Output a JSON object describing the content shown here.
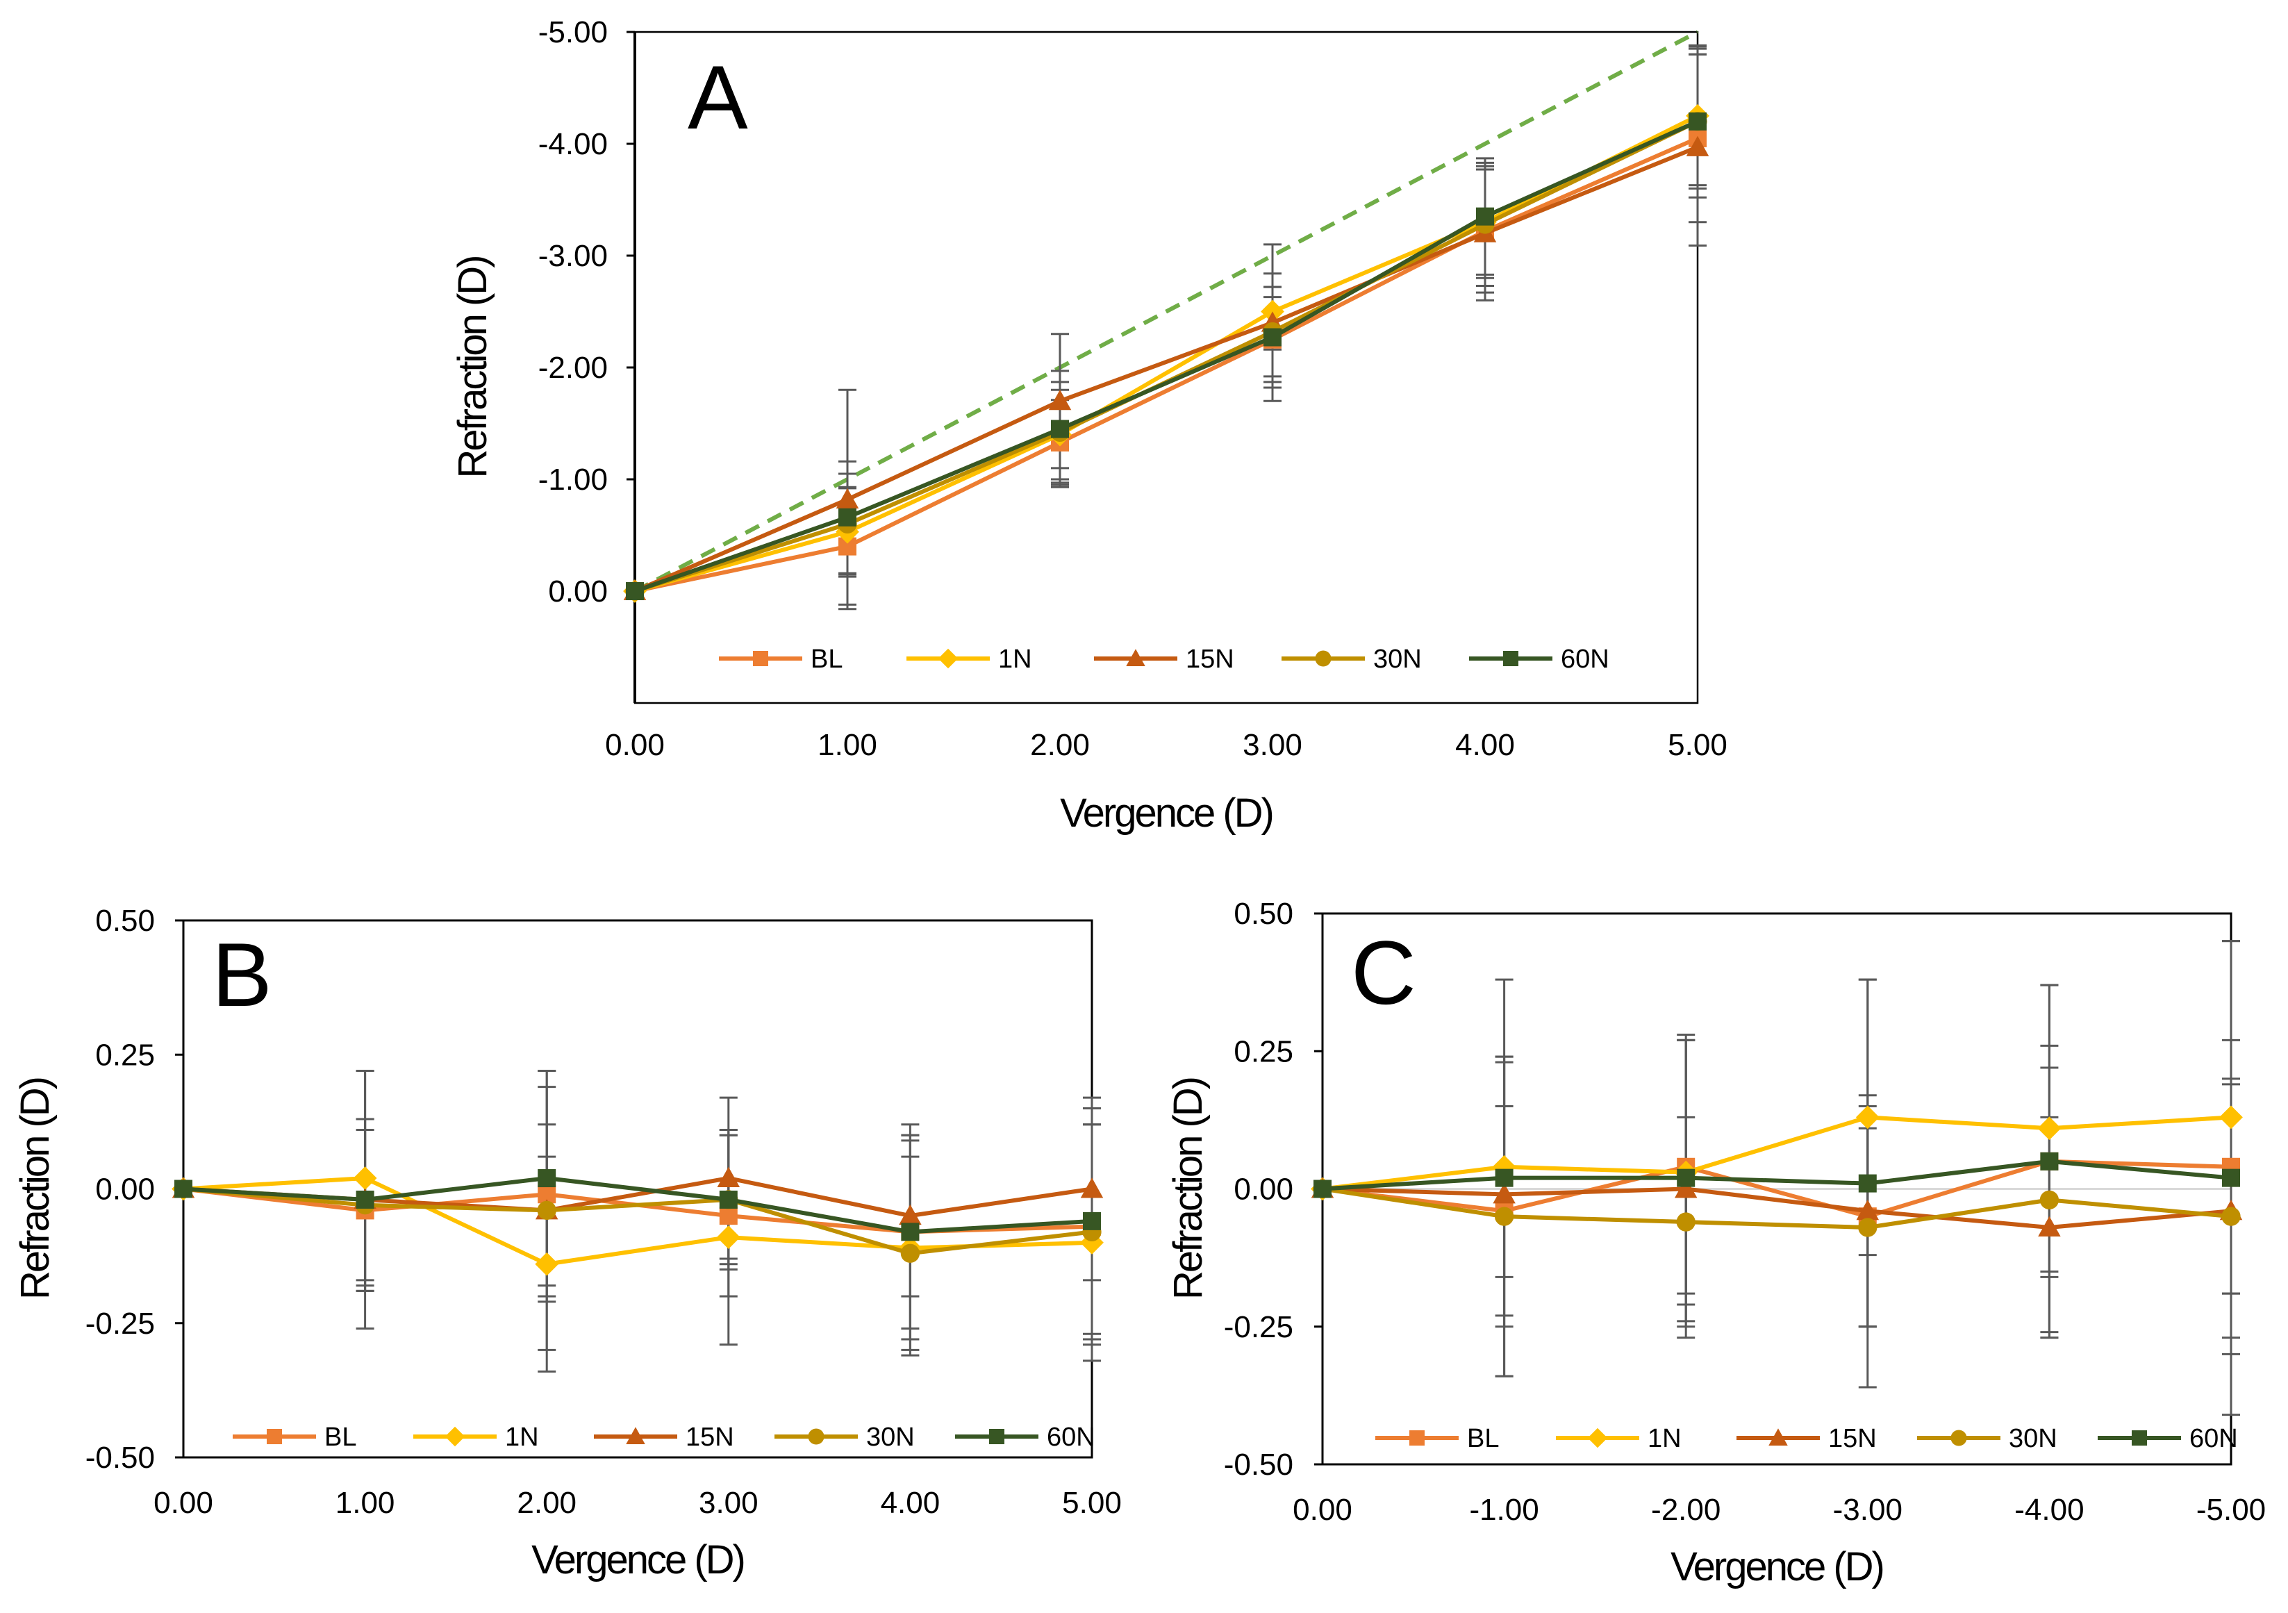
{
  "chart_data": [
    {
      "type": "line",
      "panel": "A",
      "label": "A",
      "xlabel": "Vergence (D)",
      "ylabel": "Refraction (D)",
      "x": [
        0,
        1,
        2,
        3,
        4,
        5
      ],
      "xlim": [
        0,
        5
      ],
      "ylim": [
        1,
        -5
      ],
      "xtick_values": [
        0,
        1,
        2,
        3,
        4,
        5
      ],
      "xtick_labels": [
        "0.00",
        "1.00",
        "2.00",
        "3.00",
        "4.00",
        "5.00"
      ],
      "ytick_values": [
        0,
        -1,
        -2,
        -3,
        -4,
        -5
      ],
      "ytick_labels": [
        "0.00",
        "-1.00",
        "-2.00",
        "-3.00",
        "-4.00",
        "-5.00"
      ],
      "reference_line": {
        "style": "dashed",
        "color": "#70AD47",
        "x": [
          0,
          5
        ],
        "y": [
          0,
          -5
        ]
      },
      "series": [
        {
          "name": "BL",
          "marker": "square",
          "color": "#ED7D31",
          "values": [
            0,
            -0.4,
            -1.33,
            -2.25,
            -3.22,
            -4.05
          ],
          "err": [
            0,
            0.52,
            0.38,
            0.38,
            0.55,
            0.75
          ]
        },
        {
          "name": "1N",
          "marker": "diamond",
          "color": "#FFC000",
          "values": [
            0,
            -0.53,
            -1.4,
            -2.5,
            -3.3,
            -4.25
          ],
          "err": [
            0,
            0.4,
            0.4,
            0.34,
            0.5,
            0.62
          ]
        },
        {
          "name": "15N",
          "marker": "triangle",
          "color": "#C55A11",
          "values": [
            0,
            -0.82,
            -1.7,
            -2.4,
            -3.2,
            -3.97
          ],
          "err": [
            0,
            0.98,
            0.6,
            0.7,
            0.6,
            0.88
          ]
        },
        {
          "name": "30N",
          "marker": "circle",
          "color": "#BF8F00",
          "values": [
            0,
            -0.6,
            -1.42,
            -2.32,
            -3.28,
            -4.2
          ],
          "err": [
            0,
            0.45,
            0.45,
            0.4,
            0.55,
            0.6
          ]
        },
        {
          "name": "60N",
          "marker": "square",
          "color": "#375623",
          "values": [
            0,
            -0.66,
            -1.45,
            -2.27,
            -3.35,
            -4.2
          ],
          "err": [
            0,
            0.5,
            0.52,
            0.45,
            0.52,
            0.68
          ]
        }
      ]
    },
    {
      "type": "line",
      "panel": "B",
      "label": "B",
      "xlabel": "Vergence (D)",
      "ylabel": "Refraction (D)",
      "x": [
        0,
        1,
        2,
        3,
        4,
        5
      ],
      "xlim": [
        0,
        5
      ],
      "ylim": [
        -0.5,
        0.5
      ],
      "xtick_values": [
        0,
        1,
        2,
        3,
        4,
        5
      ],
      "xtick_labels": [
        "0.00",
        "1.00",
        "2.00",
        "3.00",
        "4.00",
        "5.00"
      ],
      "ytick_values": [
        0.5,
        0.25,
        0,
        -0.25,
        -0.5
      ],
      "ytick_labels": [
        "0.50",
        "0.25",
        "0.00",
        "-0.25",
        "-0.50"
      ],
      "series": [
        {
          "name": "BL",
          "marker": "square",
          "color": "#ED7D31",
          "values": [
            0,
            -0.04,
            -0.01,
            -0.05,
            -0.08,
            -0.07
          ],
          "err": [
            0,
            0.15,
            0.2,
            0.15,
            0.2,
            0.22
          ]
        },
        {
          "name": "1N",
          "marker": "diamond",
          "color": "#FFC000",
          "values": [
            0,
            0.02,
            -0.14,
            -0.09,
            -0.11,
            -0.1
          ],
          "err": [
            0,
            0.2,
            0.2,
            0.2,
            0.2,
            0.22
          ]
        },
        {
          "name": "15N",
          "marker": "triangle",
          "color": "#C55A11",
          "values": [
            0,
            -0.02,
            -0.04,
            0.02,
            -0.05,
            0.0
          ],
          "err": [
            0,
            0.24,
            0.26,
            0.15,
            0.15,
            0.17
          ]
        },
        {
          "name": "30N",
          "marker": "circle",
          "color": "#BF8F00",
          "values": [
            0,
            -0.03,
            -0.04,
            -0.02,
            -0.12,
            -0.08
          ],
          "err": [
            0,
            0.16,
            0.16,
            0.12,
            0.18,
            0.2
          ]
        },
        {
          "name": "60N",
          "marker": "square",
          "color": "#375623",
          "values": [
            0,
            -0.02,
            0.02,
            -0.02,
            -0.08,
            -0.06
          ],
          "err": [
            0,
            0.15,
            0.2,
            0.13,
            0.18,
            0.21
          ]
        }
      ]
    },
    {
      "type": "line",
      "panel": "C",
      "label": "C",
      "xlabel": "Vergence (D)",
      "ylabel": "Refraction (D)",
      "x": [
        0,
        -1,
        -2,
        -3,
        -4,
        -5
      ],
      "xlim": [
        0,
        -5
      ],
      "ylim": [
        -0.5,
        0.5
      ],
      "xtick_values": [
        0,
        -1,
        -2,
        -3,
        -4,
        -5
      ],
      "xtick_labels": [
        "0.00",
        "-1.00",
        "-2.00",
        "-3.00",
        "-4.00",
        "-5.00"
      ],
      "ytick_values": [
        0.5,
        0.25,
        0,
        -0.25,
        -0.5
      ],
      "ytick_labels": [
        "0.50",
        "0.25",
        "0.00",
        "-0.25",
        "-0.50"
      ],
      "zero_gridline": true,
      "series": [
        {
          "name": "BL",
          "marker": "square",
          "color": "#ED7D31",
          "values": [
            0,
            -0.04,
            0.04,
            -0.05,
            0.05,
            0.04
          ],
          "err": [
            0,
            0.19,
            0.23,
            0.2,
            0.21,
            0.23
          ]
        },
        {
          "name": "1N",
          "marker": "diamond",
          "color": "#FFC000",
          "values": [
            0,
            0.04,
            0.03,
            0.13,
            0.11,
            0.13
          ],
          "err": [
            0,
            0.2,
            0.24,
            0.25,
            0.26,
            0.32
          ]
        },
        {
          "name": "15N",
          "marker": "triangle",
          "color": "#C55A11",
          "values": [
            0,
            -0.01,
            0.0,
            -0.04,
            -0.07,
            -0.04
          ],
          "err": [
            0,
            0.24,
            0.27,
            0.21,
            0.2,
            0.23
          ]
        },
        {
          "name": "30N",
          "marker": "circle",
          "color": "#BF8F00",
          "values": [
            0,
            -0.05,
            -0.06,
            -0.07,
            -0.02,
            -0.05
          ],
          "err": [
            0,
            0.29,
            0.19,
            0.18,
            0.24,
            0.25
          ]
        },
        {
          "name": "60N",
          "marker": "square",
          "color": "#375623",
          "values": [
            0,
            0.02,
            0.02,
            0.01,
            0.05,
            0.02
          ],
          "err": [
            0,
            0.36,
            0.26,
            0.37,
            0.32,
            0.43
          ]
        }
      ]
    }
  ]
}
